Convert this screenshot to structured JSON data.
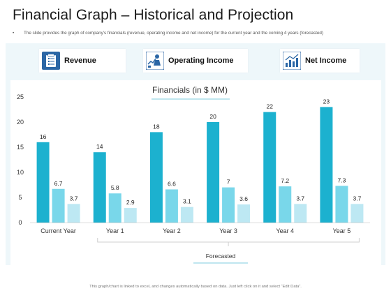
{
  "header": {
    "title": "Financial Graph – Historical and Projection",
    "bullet": "•",
    "subtitle": "The slide provides the graph of company's financials (revenue, operating income and net income) for the current year and the coming 4 years (forecasted)"
  },
  "legend": [
    {
      "label": "Revenue",
      "icon": "revenue-document-icon",
      "color": "#1cb1cf"
    },
    {
      "label": "Operating Income",
      "icon": "operating-income-person-icon",
      "color": "#79d7ea"
    },
    {
      "label": "Net Income",
      "icon": "net-income-chart-icon",
      "color": "#bde8f3"
    }
  ],
  "colors": {
    "revenue": "#1cb1cf",
    "operating_income": "#79d7ea",
    "net_income": "#bde8f3",
    "icon_box": "#2b66a5",
    "panel": "#eef7fa"
  },
  "chart_data": {
    "type": "bar",
    "title": "Financials (in $ MM)",
    "xlabel": "",
    "ylabel": "",
    "ylim": [
      0,
      25
    ],
    "yticks": [
      0,
      5,
      10,
      15,
      20,
      25
    ],
    "grid": false,
    "categories": [
      "Current Year",
      "Year 1",
      "Year 2",
      "Year 3",
      "Year 4",
      "Year 5"
    ],
    "series": [
      {
        "name": "Revenue",
        "values": [
          16,
          14,
          18,
          20,
          22,
          23
        ]
      },
      {
        "name": "Operating Income",
        "values": [
          6.7,
          5.8,
          6.6,
          7,
          7.2,
          7.3
        ]
      },
      {
        "name": "Net Income",
        "values": [
          3.7,
          2.9,
          3.1,
          3.6,
          3.7,
          3.7
        ]
      }
    ],
    "annotation": "Forecasted"
  },
  "footer": {
    "note": "This graph/chart is linked to excel, and changes automatically  based on data. Just left click on it and select “Edit Data”."
  }
}
